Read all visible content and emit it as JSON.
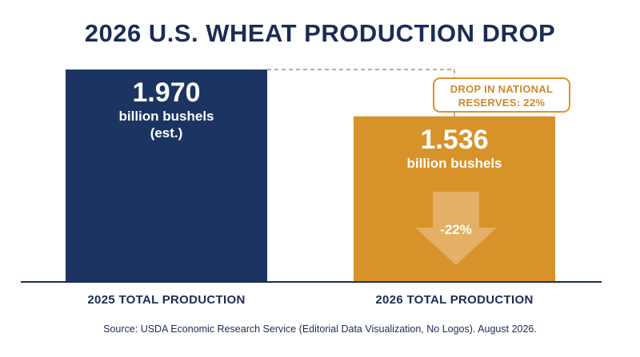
{
  "title": "2026 U.S. WHEAT PRODUCTION DROP",
  "colors": {
    "navy": "#1b3461",
    "gold": "#d8922a",
    "text": "#1b2d55"
  },
  "chart_data": {
    "type": "bar",
    "categories": [
      "2025 TOTAL PRODUCTION",
      "2026 TOTAL PRODUCTION"
    ],
    "values": [
      1.97,
      1.536
    ],
    "value_labels": [
      "1.970",
      "1.536"
    ],
    "unit_labels": [
      "billion bushels",
      "billion bushels"
    ],
    "notes": [
      "(est.)",
      ""
    ],
    "ylim": [
      0,
      2.0
    ],
    "grid": false,
    "change_label": "-22%",
    "annotation": {
      "line1": "DROP IN NATIONAL",
      "line2": "RESERVES: 22%"
    }
  },
  "source": "Source: USDA Economic Research Service (Editorial Data Visualization, No Logos). August 2026."
}
